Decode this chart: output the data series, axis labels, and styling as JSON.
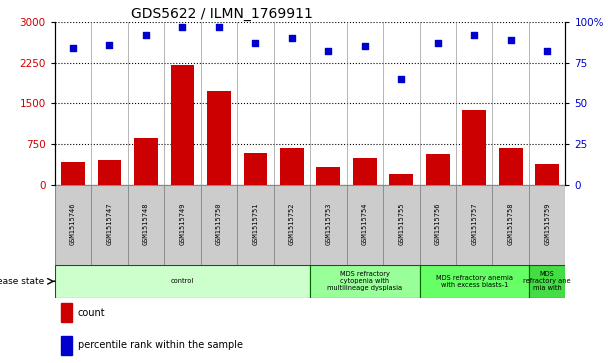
{
  "title": "GDS5622 / ILMN_1769911",
  "samples": [
    "GSM1515746",
    "GSM1515747",
    "GSM1515748",
    "GSM1515749",
    "GSM1515750",
    "GSM1515751",
    "GSM1515752",
    "GSM1515753",
    "GSM1515754",
    "GSM1515755",
    "GSM1515756",
    "GSM1515757",
    "GSM1515758",
    "GSM1515759"
  ],
  "counts": [
    430,
    470,
    870,
    2200,
    1720,
    590,
    680,
    330,
    490,
    200,
    580,
    1380,
    680,
    380
  ],
  "percentile_ranks": [
    84,
    86,
    92,
    97,
    97,
    87,
    90,
    82,
    85,
    65,
    87,
    92,
    89,
    82
  ],
  "ylim_left": [
    0,
    3000
  ],
  "ylim_right": [
    0,
    100
  ],
  "yticks_left": [
    0,
    750,
    1500,
    2250,
    3000
  ],
  "yticks_right": [
    0,
    25,
    50,
    75,
    100
  ],
  "bar_color": "#cc0000",
  "scatter_color": "#0000cc",
  "disease_groups": [
    {
      "label": "control",
      "start": 0,
      "end": 7,
      "color": "#ccffcc"
    },
    {
      "label": "MDS refractory\ncytopenia with\nmultilineage dysplasia",
      "start": 7,
      "end": 10,
      "color": "#99ff99"
    },
    {
      "label": "MDS refractory anemia\nwith excess blasts-1",
      "start": 10,
      "end": 13,
      "color": "#66ff66"
    },
    {
      "label": "MDS\nrefractory ane\nmia with",
      "start": 13,
      "end": 14,
      "color": "#44dd44"
    }
  ],
  "legend_count_label": "count",
  "legend_pct_label": "percentile rank within the sample",
  "disease_state_label": "disease state"
}
